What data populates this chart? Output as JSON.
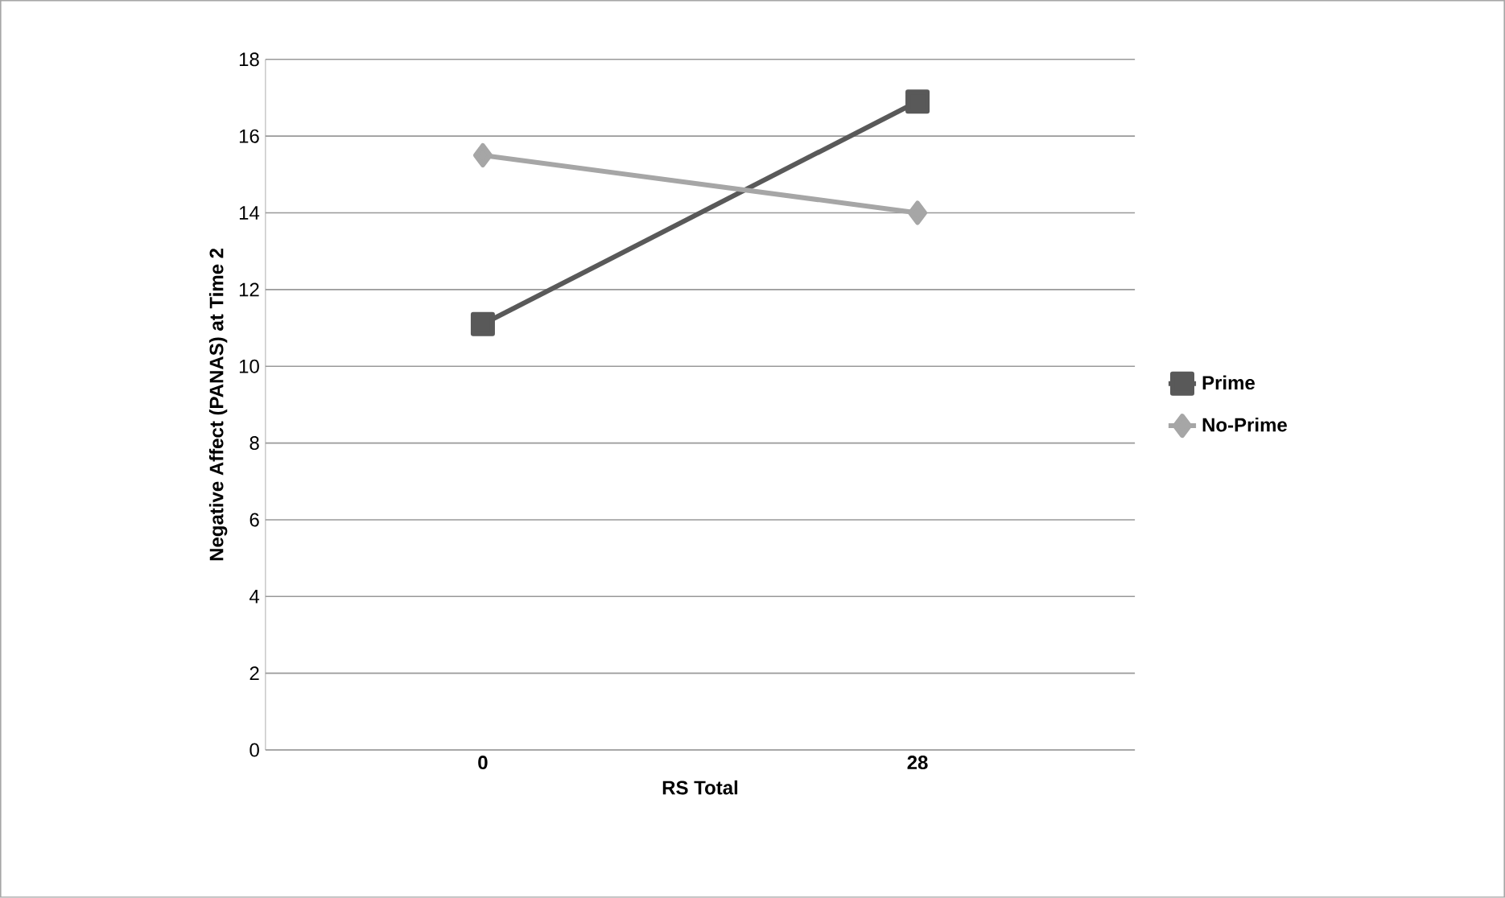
{
  "chart_data": {
    "type": "line",
    "categories": [
      "0",
      "28"
    ],
    "series": [
      {
        "name": "Prime",
        "color": "#595959",
        "values": [
          11.1,
          16.9
        ],
        "marker": "square"
      },
      {
        "name": "No-Prime",
        "color": "#a6a6a6",
        "values": [
          15.5,
          14.0
        ],
        "marker": "diamond"
      }
    ],
    "xlabel": "RS Total",
    "ylabel": "Negative Affect (PANAS) at Time 2",
    "ylim": [
      0,
      18
    ],
    "yticks": [
      0,
      2,
      4,
      6,
      8,
      10,
      12,
      14,
      16,
      18
    ],
    "grid": "y",
    "legend": "right",
    "line_style": "solid"
  }
}
